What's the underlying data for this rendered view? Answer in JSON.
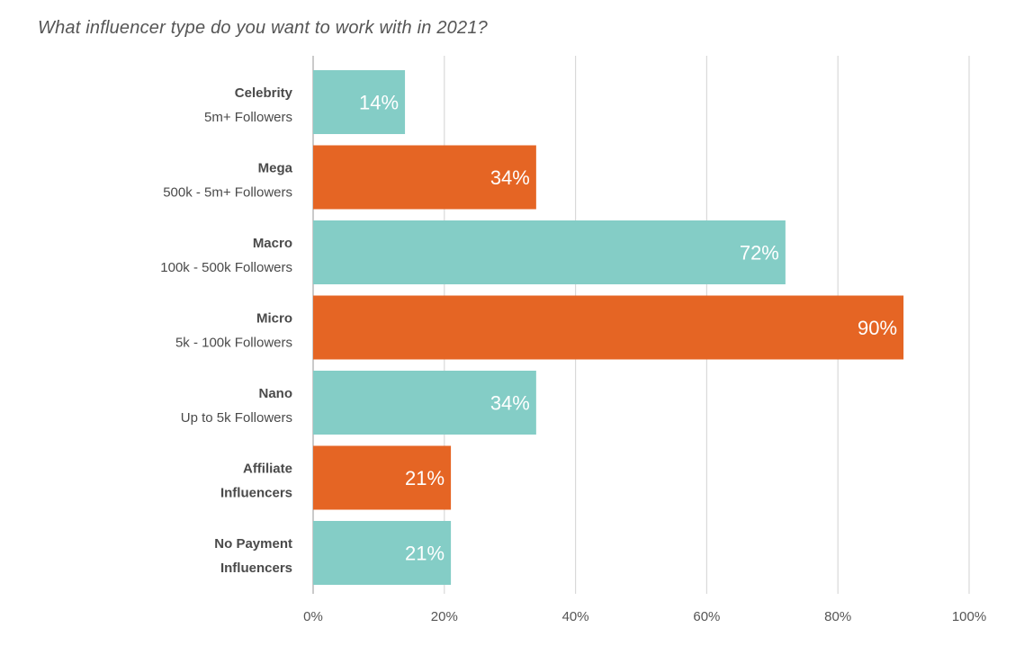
{
  "chart_data": {
    "type": "bar",
    "orientation": "horizontal",
    "title": "What influencer type do you want to work with in 2021?",
    "categories": [
      {
        "name": "Celebrity",
        "sub": "5m+ Followers"
      },
      {
        "name": "Mega",
        "sub": "500k - 5m+ Followers"
      },
      {
        "name": "Macro",
        "sub": "100k - 500k Followers"
      },
      {
        "name": "Micro",
        "sub": "5k - 100k Followers"
      },
      {
        "name": "Nano",
        "sub": "Up to 5k Followers"
      },
      {
        "name": "Affiliate",
        "sub": "Influencers",
        "sub_bold": true
      },
      {
        "name": "No Payment",
        "sub": "Influencers",
        "sub_bold": true
      }
    ],
    "values": [
      14,
      34,
      72,
      90,
      34,
      21,
      21
    ],
    "value_labels": [
      "14%",
      "34%",
      "72%",
      "90%",
      "34%",
      "21%",
      "21%"
    ],
    "colors": [
      "#84cdc6",
      "#e56524",
      "#84cdc6",
      "#e56524",
      "#84cdc6",
      "#e56524",
      "#84cdc6"
    ],
    "xlim": [
      0,
      100
    ],
    "ticks": [
      0,
      20,
      40,
      60,
      80,
      100
    ],
    "tick_labels": [
      "0%",
      "20%",
      "40%",
      "60%",
      "80%",
      "100%"
    ],
    "grid": "vertical",
    "xlabel": "",
    "ylabel": ""
  }
}
